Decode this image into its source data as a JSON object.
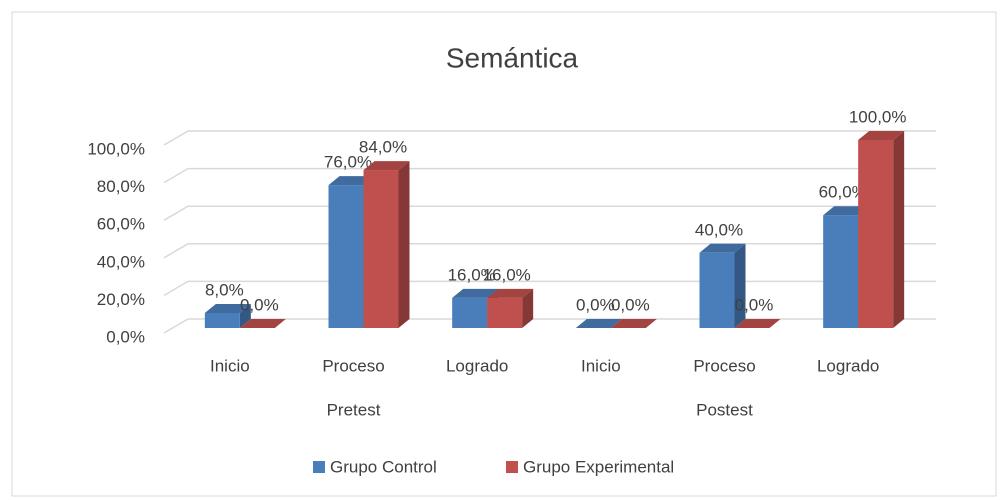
{
  "chart_data": {
    "type": "bar3d",
    "title": "Semántica",
    "categories": [
      "Inicio",
      "Proceso",
      "Logrado",
      "Inicio",
      "Proceso",
      "Logrado"
    ],
    "groups": [
      "Pretest",
      "Postest"
    ],
    "series": [
      {
        "name": "Grupo Control",
        "color": "#4a7ebb",
        "values": [
          8,
          76,
          16,
          0,
          40,
          60
        ],
        "value_labels": [
          "8,0%",
          "76,0%",
          "16,0%",
          "0,0%",
          "40,0%",
          "60,0%"
        ]
      },
      {
        "name": "Grupo Experimental",
        "color": "#c0504d",
        "values": [
          0,
          84,
          16,
          0,
          0,
          100
        ],
        "value_labels": [
          "0,0%",
          "84,0%",
          "16,0%",
          "0,0%",
          "0,0%",
          "100,0%"
        ]
      }
    ],
    "ylim": [
      0,
      100
    ],
    "yticks": [
      {
        "value": 0,
        "label": "0,0%"
      },
      {
        "value": 20,
        "label": "20,0%"
      },
      {
        "value": 40,
        "label": "40,0%"
      },
      {
        "value": 60,
        "label": "60,0%"
      },
      {
        "value": 80,
        "label": "80,0%"
      },
      {
        "value": 100,
        "label": "100,0%"
      }
    ],
    "grid": true,
    "legend": "bottom"
  }
}
